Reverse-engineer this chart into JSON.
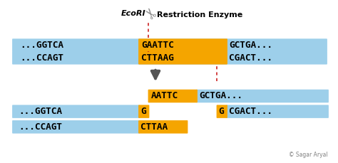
{
  "bg_color": "#ffffff",
  "blue_color": "#9dcfea",
  "orange_color": "#f5a500",
  "cut_color": "#cc2222",
  "arrow_color": "#555555",
  "ecori_label": "EcoRI",
  "title": "Restriction Enzyme",
  "copyright": "© Sagar Aryal",
  "strand1_left": "...GGTCA",
  "strand1_orange": "GAATTC",
  "strand1_right": "GCTGA...",
  "strand2_left": "...CCAGT",
  "strand2_orange": "CTTAAG",
  "strand2_right": "CGACT...",
  "res_top_orange": "AATTC",
  "res_top_blue": "GCTGA...",
  "res_mid_left_blue": "...GGTCA",
  "res_mid_left_orange": "G",
  "res_mid_right_orange": "G",
  "res_mid_right_blue": "CGACT...",
  "res_bot_left_blue": "...CCAGT",
  "res_bot_left_orange": "CTTAA",
  "fig_w": 4.74,
  "fig_h": 2.29,
  "dpi": 100
}
